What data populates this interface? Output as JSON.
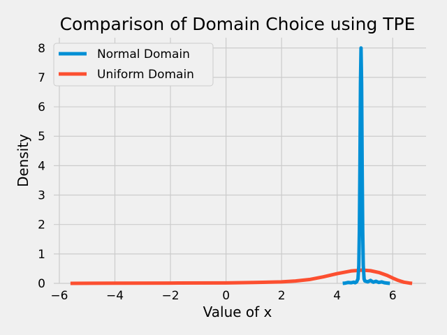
{
  "chart_data": {
    "type": "line",
    "title": "Comparison of Domain Choice using TPE",
    "xlabel": "Value of x",
    "ylabel": "Density",
    "xlim": [
      -6.2,
      7.2
    ],
    "ylim": [
      0,
      8.35
    ],
    "x_ticks": [
      -6,
      -4,
      -2,
      0,
      2,
      4,
      6
    ],
    "x_tick_labels": [
      "−6",
      "−4",
      "−2",
      "0",
      "2",
      "4",
      "6"
    ],
    "y_ticks": [
      0,
      1,
      2,
      3,
      4,
      5,
      6,
      7,
      8
    ],
    "y_tick_labels": [
      "0",
      "1",
      "2",
      "3",
      "4",
      "5",
      "6",
      "7",
      "8"
    ],
    "grid": true,
    "legend_position": "upper-left",
    "series": [
      {
        "name": "Normal Domain",
        "color": "#008fd5",
        "points": [
          [
            4.2,
            0.0
          ],
          [
            4.3,
            0.01
          ],
          [
            4.4,
            0.03
          ],
          [
            4.5,
            0.02
          ],
          [
            4.6,
            0.04
          ],
          [
            4.65,
            0.02
          ],
          [
            4.7,
            0.05
          ],
          [
            4.75,
            0.15
          ],
          [
            4.78,
            0.6
          ],
          [
            4.8,
            1.8
          ],
          [
            4.82,
            4.0
          ],
          [
            4.84,
            6.8
          ],
          [
            4.86,
            8.0
          ],
          [
            4.88,
            6.8
          ],
          [
            4.9,
            4.0
          ],
          [
            4.92,
            1.8
          ],
          [
            4.94,
            0.6
          ],
          [
            4.97,
            0.15
          ],
          [
            5.0,
            0.08
          ],
          [
            5.1,
            0.05
          ],
          [
            5.2,
            0.1
          ],
          [
            5.3,
            0.04
          ],
          [
            5.4,
            0.07
          ],
          [
            5.5,
            0.03
          ],
          [
            5.6,
            0.05
          ],
          [
            5.7,
            0.02
          ],
          [
            5.8,
            0.01
          ],
          [
            5.9,
            0.0
          ]
        ]
      },
      {
        "name": "Uniform Domain",
        "color": "#fc4f30",
        "points": [
          [
            -5.6,
            0.0
          ],
          [
            -4.0,
            0.005
          ],
          [
            -2.0,
            0.01
          ],
          [
            0.0,
            0.015
          ],
          [
            1.0,
            0.03
          ],
          [
            2.0,
            0.05
          ],
          [
            2.5,
            0.08
          ],
          [
            3.0,
            0.13
          ],
          [
            3.5,
            0.22
          ],
          [
            4.0,
            0.33
          ],
          [
            4.5,
            0.42
          ],
          [
            4.9,
            0.45
          ],
          [
            5.2,
            0.43
          ],
          [
            5.5,
            0.37
          ],
          [
            5.8,
            0.27
          ],
          [
            6.0,
            0.18
          ],
          [
            6.2,
            0.1
          ],
          [
            6.4,
            0.04
          ],
          [
            6.6,
            0.01
          ],
          [
            6.7,
            0.0
          ]
        ]
      }
    ]
  }
}
